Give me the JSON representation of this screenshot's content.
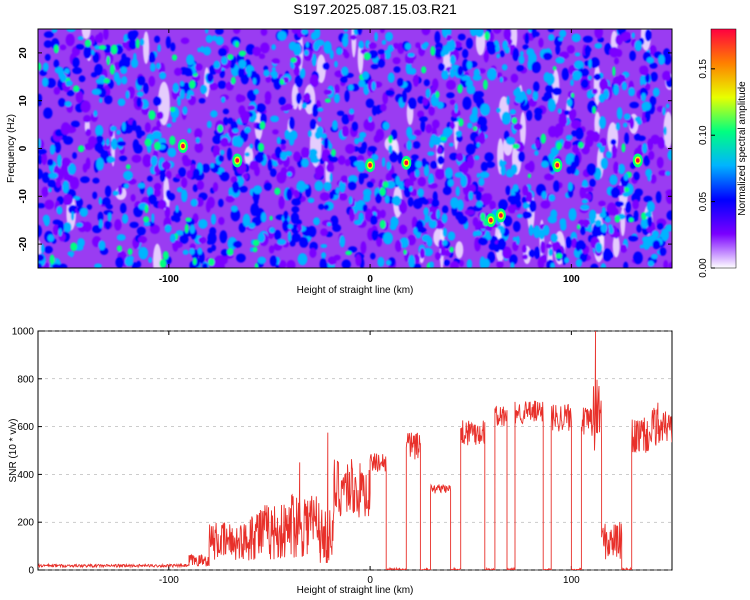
{
  "title": "S197.2025.087.15.03.R21",
  "chart_data": [
    {
      "type": "heatmap",
      "xlabel": "Height of straight line (km)",
      "ylabel": "Frequency (Hz)",
      "xlim": [
        -165,
        150
      ],
      "ylim": [
        -25,
        25
      ],
      "xticks": [
        "-100",
        "0",
        "100"
      ],
      "yticks": [
        "-20",
        "-10",
        "0",
        "10",
        "20"
      ],
      "hot_spots": [
        {
          "x": -93,
          "y": 0.5
        },
        {
          "x": -66,
          "y": -2.5
        },
        {
          "x": 0,
          "y": -3.5
        },
        {
          "x": 18,
          "y": -3
        },
        {
          "x": 60,
          "y": -15
        },
        {
          "x": 65,
          "y": -14
        },
        {
          "x": 93,
          "y": -3.5
        },
        {
          "x": 133,
          "y": -2.5
        }
      ],
      "colorbar": {
        "label": "Normalized spectral amplitude",
        "range": [
          0,
          0.18
        ],
        "ticks": [
          "0.00",
          "0.05",
          "0.10",
          "0.15"
        ],
        "colors": [
          "#ffffff",
          "#7a00ff",
          "#0000ff",
          "#00b4ff",
          "#00ff80",
          "#e8ff00",
          "#ff8000",
          "#ff0040"
        ]
      }
    },
    {
      "type": "line",
      "xlabel": "Height of straight line (km)",
      "ylabel": "SNR (10 * v/v)",
      "xlim": [
        -165,
        150
      ],
      "ylim": [
        0,
        1000
      ],
      "xticks": [
        "-100",
        "0",
        "100"
      ],
      "yticks": [
        "0",
        "200",
        "400",
        "600",
        "800",
        "1000"
      ],
      "color": "#e8302a",
      "segments": [
        {
          "x": [
            -165,
            -90
          ],
          "level": 18,
          "noise": 6
        },
        {
          "x": [
            -90,
            -80
          ],
          "level": 40,
          "noise": 25
        },
        {
          "x": [
            -80,
            -60
          ],
          "level": 120,
          "noise": 80
        },
        {
          "x": [
            -60,
            -40
          ],
          "level": 160,
          "noise": 120
        },
        {
          "x": [
            -40,
            -25
          ],
          "level": 200,
          "noise": 150
        },
        {
          "x": [
            -25,
            -18
          ],
          "level": 140,
          "noise": 120
        },
        {
          "x": [
            -18,
            -8
          ],
          "level": 350,
          "noise": 130
        },
        {
          "x": [
            -8,
            0
          ],
          "level": 330,
          "noise": 120
        },
        {
          "x": [
            0,
            8
          ],
          "level": 450,
          "noise": 40
        },
        {
          "x": [
            8,
            18
          ],
          "level": 0,
          "noise": 8
        },
        {
          "x": [
            18,
            25
          ],
          "level": 520,
          "noise": 60
        },
        {
          "x": [
            25,
            30
          ],
          "level": 0,
          "noise": 8
        },
        {
          "x": [
            30,
            40
          ],
          "level": 340,
          "noise": 20
        },
        {
          "x": [
            40,
            45
          ],
          "level": 0,
          "noise": 8
        },
        {
          "x": [
            45,
            57
          ],
          "level": 580,
          "noise": 60
        },
        {
          "x": [
            57,
            62
          ],
          "level": 0,
          "noise": 8
        },
        {
          "x": [
            62,
            68
          ],
          "level": 640,
          "noise": 50
        },
        {
          "x": [
            68,
            72
          ],
          "level": 0,
          "noise": 8
        },
        {
          "x": [
            72,
            86
          ],
          "level": 660,
          "noise": 50
        },
        {
          "x": [
            86,
            90
          ],
          "level": 0,
          "noise": 8
        },
        {
          "x": [
            90,
            100
          ],
          "level": 640,
          "noise": 60
        },
        {
          "x": [
            100,
            105
          ],
          "level": 0,
          "noise": 8
        },
        {
          "x": [
            105,
            110
          ],
          "level": 620,
          "noise": 60
        },
        {
          "x": [
            110,
            115
          ],
          "level": 650,
          "noise": 160
        },
        {
          "x": [
            115,
            125
          ],
          "level": 120,
          "noise": 80
        },
        {
          "x": [
            125,
            130
          ],
          "level": 0,
          "noise": 8
        },
        {
          "x": [
            130,
            140
          ],
          "level": 560,
          "noise": 80
        },
        {
          "x": [
            140,
            150
          ],
          "level": 600,
          "noise": 80
        }
      ],
      "peaks": [
        {
          "x": -21,
          "y": 575
        },
        {
          "x": -35,
          "y": 450
        },
        {
          "x": 112,
          "y": 1000
        },
        {
          "x": 143,
          "y": 700
        }
      ]
    }
  ]
}
